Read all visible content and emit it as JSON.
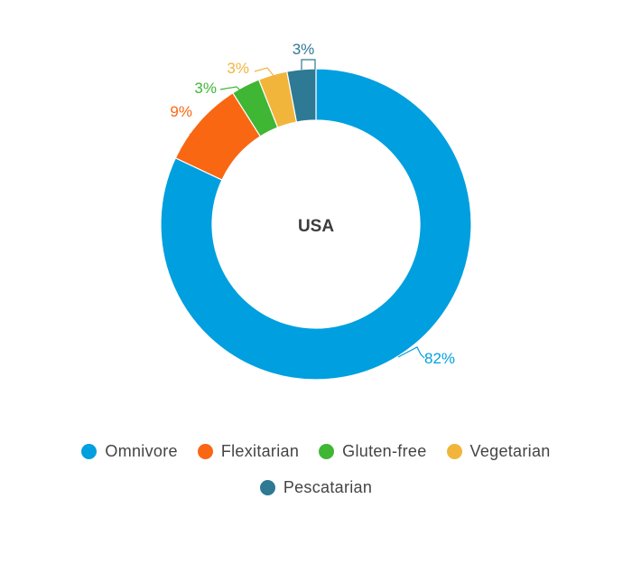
{
  "chart_data": {
    "type": "pie",
    "center_label": "USA",
    "title": "",
    "slices": [
      {
        "name": "Omnivore",
        "value": 82,
        "label": "82%",
        "color": "#009fdf"
      },
      {
        "name": "Flexitarian",
        "value": 9,
        "label": "9%",
        "color": "#f96713"
      },
      {
        "name": "Gluten-free",
        "value": 3,
        "label": "3%",
        "color": "#3fb634"
      },
      {
        "name": "Vegetarian",
        "value": 3,
        "label": "3%",
        "color": "#f2b53c"
      },
      {
        "name": "Pescatarian",
        "value": 3,
        "label": "3%",
        "color": "#2e7994"
      }
    ],
    "legend_position": "bottom"
  }
}
